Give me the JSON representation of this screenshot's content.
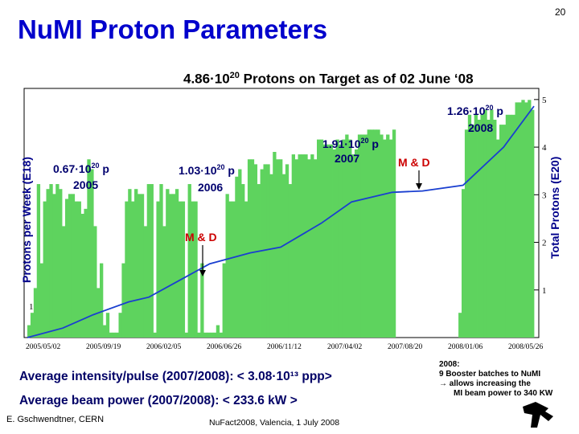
{
  "slide": {
    "title": "NuMI Proton Parameters",
    "page_number": "20",
    "author": "E. Gschwendtner, CERN",
    "conference": "NuFact2008, Valencia, 1 July 2008",
    "avg_intensity": "Average intensity/pulse (2007/2008):  < 3.08·10¹³ ppp>",
    "avg_power": "Average beam power (2007/2008):  < 233.6 kW >",
    "note_2008": {
      "heading": "2008:",
      "line1": "9 Booster batches to NuMI",
      "line2": "→ allows increasing the",
      "line3": "MI beam power to 340 KW"
    }
  },
  "chart_data": {
    "type": "bar",
    "headline_base": "4.86·10",
    "headline_exp": "20",
    "headline_rest": " Protons on Target as of 02 June ‘08",
    "ylabel_left": "Protons per Week (E18)",
    "ylabel_right": "Total Protons (E20)",
    "y_right_ticks": [
      "1",
      "2",
      "3",
      "4",
      "5"
    ],
    "y_right_range": [
      0,
      5.2
    ],
    "y_left_ticks": [
      "1"
    ],
    "x_ticks": [
      "2005/05/02",
      "2005/09/19",
      "2006/02/05",
      "2006/06/26",
      "2006/11/12",
      "2007/04/02",
      "2007/08/20",
      "2008/01/06",
      "2008/05/26"
    ],
    "annotations": {
      "y2005": {
        "base": "0.67·10",
        "exp": "20",
        "unit": " p",
        "year": "2005"
      },
      "y2006": {
        "base": "1.03·10",
        "exp": "20",
        "unit": " p",
        "year": "2006"
      },
      "y2007": {
        "base": "1.91·10",
        "exp": "20",
        "unit": " p",
        "year": "2007"
      },
      "y2008": {
        "base": "1.26·10",
        "exp": "20",
        "unit": " p",
        "year": "2008"
      },
      "md1": "M & D",
      "md2": "M & D"
    },
    "weekly_protons_relative": [
      0.05,
      0.1,
      0.2,
      0.62,
      0.3,
      0.55,
      0.6,
      0.62,
      0.58,
      0.62,
      0.6,
      0.45,
      0.56,
      0.58,
      0.58,
      0.55,
      0.55,
      0.5,
      0.52,
      0.72,
      0.68,
      0.45,
      0.2,
      0.3,
      0.05,
      0.1,
      0.02,
      0.02,
      0.02,
      0.1,
      0.3,
      0.55,
      0.6,
      0.55,
      0.6,
      0.58,
      0.58,
      0.45,
      0.62,
      0.62,
      0.02,
      0.55,
      0.62,
      0.45,
      0.6,
      0.58,
      0.58,
      0.6,
      0.55,
      0.55,
      0.02,
      0.62,
      0.55,
      0.55,
      0.02,
      0.3,
      0.02,
      0.02,
      0.02,
      0.02,
      0.05,
      0.02,
      0.3,
      0.58,
      0.55,
      0.55,
      0.65,
      0.68,
      0.62,
      0.55,
      0.72,
      0.72,
      0.7,
      0.62,
      0.68,
      0.7,
      0.7,
      0.66,
      0.75,
      0.72,
      0.72,
      0.66,
      0.7,
      0.62,
      0.74,
      0.72,
      0.74,
      0.74,
      0.74,
      0.72,
      0.74,
      0.72,
      0.8,
      0.8,
      0.78,
      0.78,
      0.78,
      0.76,
      0.8,
      0.78,
      0.8,
      0.82,
      0.8,
      0.74,
      0.76,
      0.82,
      0.82,
      0.82,
      0.84,
      0.84,
      0.84,
      0.84,
      0.82,
      0.8,
      0.82,
      0.8,
      0.84,
      0.0,
      0.0,
      0.0,
      0.0,
      0.0,
      0.0,
      0.0,
      0.0,
      0.0,
      0.0,
      0.0,
      0.0,
      0.0,
      0.0,
      0.0,
      0.0,
      0.0,
      0.0,
      0.0,
      0.0,
      0.1,
      0.6,
      0.84,
      0.9,
      0.86,
      0.9,
      0.88,
      0.9,
      0.92,
      0.88,
      0.92,
      0.88,
      0.8,
      0.86,
      0.86,
      0.9,
      0.9,
      0.9,
      0.95,
      0.95,
      0.96,
      0.95,
      0.96,
      0.92
    ],
    "cumulative_total_E20": [
      [
        0,
        0
      ],
      [
        0.07,
        0.2
      ],
      [
        0.13,
        0.48
      ],
      [
        0.2,
        0.75
      ],
      [
        0.24,
        0.85
      ],
      [
        0.3,
        1.2
      ],
      [
        0.36,
        1.55
      ],
      [
        0.44,
        1.78
      ],
      [
        0.5,
        1.9
      ],
      [
        0.58,
        2.4
      ],
      [
        0.64,
        2.85
      ],
      [
        0.72,
        3.05
      ],
      [
        0.78,
        3.08
      ],
      [
        0.86,
        3.2
      ],
      [
        0.94,
        4.0
      ],
      [
        1.0,
        4.86
      ]
    ]
  }
}
